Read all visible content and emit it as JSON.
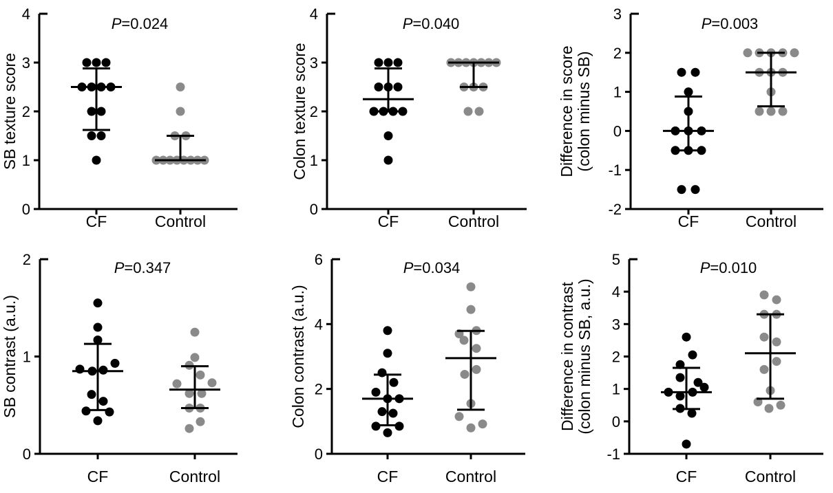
{
  "figure": {
    "groups": [
      "CF",
      "Control"
    ],
    "colors": {
      "cf_dots": "#000000",
      "control_dots": "#8a8a8a",
      "axis": "#000000",
      "background": "#ffffff"
    }
  },
  "chart_data": [
    {
      "type": "scatter",
      "id": "sb-texture-score",
      "p_label": "P=0.024",
      "ylabel_lines": [
        "SB texture score"
      ],
      "ylim": [
        0,
        4
      ],
      "yticks": [
        0,
        1,
        2,
        3,
        4
      ],
      "categories": [
        "CF",
        "Control"
      ],
      "series": [
        {
          "name": "CF",
          "color": "#000000",
          "values": [
            3,
            3,
            3,
            2.5,
            2.5,
            2.5,
            2.5,
            2,
            2,
            1.5,
            1.5,
            1
          ],
          "jitter": [
            -14,
            0,
            14,
            -21,
            -7,
            7,
            21,
            -7,
            7,
            -7,
            7,
            0
          ],
          "median": 2.5,
          "q1": 1.62,
          "q3": 2.88
        },
        {
          "name": "Control",
          "color": "#8a8a8a",
          "values": [
            2.5,
            2,
            1.5,
            1.5,
            1,
            1,
            1,
            1,
            1,
            1,
            1,
            1
          ],
          "jitter": [
            0,
            0,
            -8,
            8,
            -35,
            -25,
            -15,
            -5,
            5,
            15,
            25,
            35
          ],
          "median": 1.0,
          "q1": 1.0,
          "q3": 1.5
        }
      ]
    },
    {
      "type": "scatter",
      "id": "colon-texture-score",
      "p_label": "P=0.040",
      "ylabel_lines": [
        "Colon texture score"
      ],
      "ylim": [
        0,
        4
      ],
      "yticks": [
        0,
        1,
        2,
        3,
        4
      ],
      "categories": [
        "CF",
        "Control"
      ],
      "series": [
        {
          "name": "CF",
          "color": "#000000",
          "values": [
            3,
            3,
            3,
            2.5,
            2.5,
            2.5,
            2,
            2,
            2,
            2,
            1.5,
            1
          ],
          "jitter": [
            -14,
            0,
            14,
            -14,
            0,
            14,
            -21,
            -7,
            7,
            21,
            0,
            0
          ],
          "median": 2.25,
          "q1": 2.0,
          "q3": 2.88
        },
        {
          "name": "Control",
          "color": "#8a8a8a",
          "values": [
            3,
            3,
            3,
            3,
            3,
            3,
            3,
            2.5,
            2.5,
            2.5,
            2,
            2
          ],
          "jitter": [
            -33,
            -22,
            -11,
            0,
            11,
            22,
            33,
            -14,
            0,
            14,
            -8,
            8
          ],
          "median": 3.0,
          "q1": 2.5,
          "q3": 3.0
        }
      ]
    },
    {
      "type": "scatter",
      "id": "difference-in-score",
      "p_label": "P=0.003",
      "ylabel_lines": [
        "Difference in score",
        "(colon minus SB)"
      ],
      "ylim": [
        -2,
        3
      ],
      "yticks": [
        -2,
        -1,
        0,
        1,
        2,
        3
      ],
      "categories": [
        "CF",
        "Control"
      ],
      "series": [
        {
          "name": "CF",
          "color": "#000000",
          "values": [
            1.5,
            1.5,
            1,
            0.5,
            0,
            0,
            0,
            -0.5,
            -0.5,
            -0.5,
            -1.5,
            -1.5
          ],
          "jitter": [
            -10,
            10,
            0,
            0,
            -19,
            0,
            19,
            -19,
            0,
            19,
            -10,
            10
          ],
          "median": 0.0,
          "q1": -0.5,
          "q3": 0.88
        },
        {
          "name": "Control",
          "color": "#8a8a8a",
          "values": [
            2,
            2,
            2,
            2,
            2,
            1.5,
            1.5,
            1.5,
            1,
            0.5,
            0.5,
            0.5
          ],
          "jitter": [
            -34,
            -17,
            0,
            17,
            34,
            -17,
            0,
            17,
            0,
            -17,
            0,
            17
          ],
          "median": 1.5,
          "q1": 0.63,
          "q3": 2.0
        }
      ]
    },
    {
      "type": "scatter",
      "id": "sb-contrast",
      "p_label": "P=0.347",
      "ylabel_lines": [
        "SB contrast (a.u.)"
      ],
      "ylim": [
        0,
        2
      ],
      "yticks": [
        0,
        1,
        2
      ],
      "categories": [
        "CF",
        "Control"
      ],
      "series": [
        {
          "name": "CF",
          "color": "#000000",
          "values": [
            1.55,
            1.3,
            1.17,
            0.93,
            0.87,
            0.86,
            0.85,
            0.61,
            0.54,
            0.44,
            0.43,
            0.34
          ],
          "jitter": [
            0,
            0,
            0,
            25,
            -26,
            8,
            -8,
            -9,
            8,
            -17,
            17,
            0
          ],
          "median": 0.85,
          "q1": 0.45,
          "q3": 1.13
        },
        {
          "name": "Control",
          "color": "#8a8a8a",
          "values": [
            1.25,
            0.99,
            0.91,
            0.81,
            0.73,
            0.72,
            0.62,
            0.62,
            0.47,
            0.47,
            0.33,
            0.26
          ],
          "jitter": [
            0,
            0,
            -8,
            8,
            25,
            -26,
            -8,
            10,
            -8,
            8,
            8,
            -8
          ],
          "median": 0.66,
          "q1": 0.47,
          "q3": 0.9
        }
      ]
    },
    {
      "type": "scatter",
      "id": "colon-contrast",
      "p_label": "P=0.034",
      "ylabel_lines": [
        "Colon contrast (a.u.)"
      ],
      "ylim": [
        0,
        6
      ],
      "yticks": [
        0,
        2,
        4,
        6
      ],
      "categories": [
        "CF",
        "Control"
      ],
      "series": [
        {
          "name": "CF",
          "color": "#000000",
          "values": [
            3.8,
            3.1,
            2.5,
            2.2,
            1.9,
            1.7,
            1.7,
            1.3,
            1.25,
            0.85,
            0.85,
            0.65
          ],
          "jitter": [
            0,
            0,
            -8,
            9,
            -17,
            0,
            17,
            -8,
            8,
            -17,
            17,
            0
          ],
          "median": 1.7,
          "q1": 0.88,
          "q3": 2.44
        },
        {
          "name": "Control",
          "color": "#8a8a8a",
          "values": [
            5.15,
            4.45,
            3.8,
            3.7,
            3.5,
            3.25,
            2.6,
            2.45,
            1.55,
            1.15,
            0.92,
            0.8
          ],
          "jitter": [
            0,
            0,
            8,
            -17,
            -10,
            8,
            8,
            -9,
            0,
            -17,
            17,
            0
          ],
          "median": 2.95,
          "q1": 1.36,
          "q3": 3.79
        }
      ]
    },
    {
      "type": "scatter",
      "id": "difference-in-contrast",
      "p_label": "P=0.010",
      "ylabel_lines": [
        "Difference in contrast",
        "(colon minus SB, a.u.)"
      ],
      "ylim": [
        -1,
        5
      ],
      "yticks": [
        -1,
        0,
        1,
        2,
        3,
        4,
        5
      ],
      "categories": [
        "CF",
        "Control"
      ],
      "series": [
        {
          "name": "CF",
          "color": "#000000",
          "values": [
            2.6,
            2.05,
            1.75,
            1.35,
            1.2,
            1.05,
            0.9,
            0.9,
            0.78,
            0.4,
            0.25,
            -0.7
          ],
          "jitter": [
            0,
            9,
            -9,
            -9,
            17,
            26,
            -26,
            9,
            -9,
            -9,
            8,
            0
          ],
          "median": 0.9,
          "q1": 0.38,
          "q3": 1.65
        },
        {
          "name": "Control",
          "color": "#8a8a8a",
          "values": [
            3.9,
            3.75,
            3.3,
            3.3,
            2.6,
            2.45,
            1.85,
            1.6,
            0.95,
            0.6,
            0.5,
            0.4
          ],
          "jitter": [
            -9,
            9,
            -9,
            9,
            -9,
            9,
            9,
            -9,
            0,
            -18,
            15,
            -2
          ],
          "median": 2.1,
          "q1": 0.7,
          "q3": 3.3
        }
      ]
    }
  ]
}
